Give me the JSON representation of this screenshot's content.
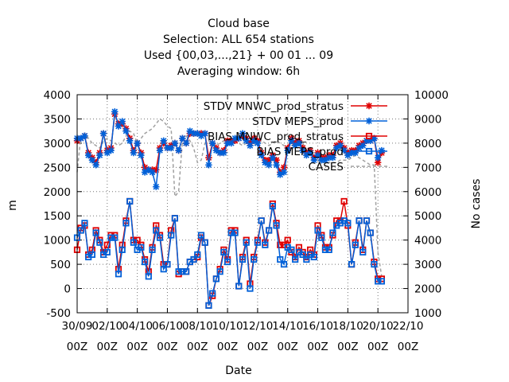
{
  "chart_data": {
    "type": "line",
    "title_lines": [
      "Cloud base",
      "Selection: ALL    654 stations",
      "Used {00,03,...,21} + 00 01 ... 09",
      "Averaging window:  6h"
    ],
    "xlabel": "Date",
    "ylabel": "m",
    "y2label": "No cases",
    "xlim": [
      0,
      22
    ],
    "ylim": [
      -500,
      4000
    ],
    "y2lim": [
      1000,
      10000
    ],
    "x_ticks": [
      {
        "line1": "30/09",
        "line2": "00Z"
      },
      {
        "line1": "02/10",
        "line2": "00Z"
      },
      {
        "line1": "04/10",
        "line2": "00Z"
      },
      {
        "line1": "06/10",
        "line2": "00Z"
      },
      {
        "line1": "08/10",
        "line2": "00Z"
      },
      {
        "line1": "10/10",
        "line2": "00Z"
      },
      {
        "line1": "12/10",
        "line2": "00Z"
      },
      {
        "line1": "14/10",
        "line2": "00Z"
      },
      {
        "line1": "16/10",
        "line2": "00Z"
      },
      {
        "line1": "18/10",
        "line2": "00Z"
      },
      {
        "line1": "20/10",
        "line2": "00Z"
      },
      {
        "line1": "22/10",
        "line2": "00Z"
      }
    ],
    "y_ticks": [
      "-500",
      "0",
      "500",
      "1000",
      "1500",
      "2000",
      "2500",
      "3000",
      "3500",
      "4000"
    ],
    "y2_ticks": [
      "1000",
      "2000",
      "3000",
      "4000",
      "5000",
      "6000",
      "7000",
      "8000",
      "9000",
      "10000"
    ],
    "grid": true,
    "legend_position": "top-right",
    "x": [
      0.0,
      0.25,
      0.5,
      0.75,
      1.0,
      1.25,
      1.5,
      1.75,
      2.0,
      2.25,
      2.5,
      2.75,
      3.0,
      3.25,
      3.5,
      3.75,
      4.0,
      4.25,
      4.5,
      4.75,
      5.0,
      5.25,
      5.5,
      5.75,
      6.0,
      6.25,
      6.5,
      6.75,
      7.0,
      7.25,
      7.5,
      7.75,
      8.0,
      8.25,
      8.5,
      8.75,
      9.0,
      9.25,
      9.5,
      9.75,
      10.0,
      10.25,
      10.5,
      10.75,
      11.0,
      11.25,
      11.5,
      11.75,
      12.0,
      12.25,
      12.5,
      12.75,
      13.0,
      13.25,
      13.5,
      13.75,
      14.0,
      14.25,
      14.5,
      14.75,
      15.0,
      15.25,
      15.5,
      15.75,
      16.0,
      16.25,
      16.5,
      16.75,
      17.0,
      17.25,
      17.5,
      17.75,
      18.0,
      18.25,
      18.5,
      18.75,
      19.0,
      19.25,
      19.5,
      19.75,
      20.0,
      20.25
    ],
    "series": [
      {
        "name": "STDV MNWC_prod_stratus",
        "axis": "y",
        "color": "#e00000",
        "marker": "x",
        "dash": "solid",
        "values": [
          3050,
          3100,
          3150,
          2800,
          2700,
          2600,
          2800,
          3200,
          2850,
          2900,
          3600,
          3400,
          3400,
          3300,
          3100,
          2850,
          3000,
          2800,
          2500,
          2450,
          2450,
          2450,
          2900,
          3000,
          2900,
          2950,
          3000,
          2850,
          3100,
          3000,
          3200,
          3200,
          3200,
          3200,
          3200,
          2700,
          3000,
          2900,
          2800,
          2850,
          3050,
          3050,
          3050,
          3100,
          3150,
          3100,
          3000,
          3100,
          3050,
          2800,
          2650,
          2650,
          2750,
          2650,
          2400,
          2500,
          2900,
          3100,
          3000,
          3050,
          2900,
          2800,
          2850,
          2700,
          2800,
          2700,
          2700,
          2750,
          2750,
          2950,
          3000,
          2900,
          2800,
          2850,
          2850,
          2950,
          3000,
          3050,
          3050,
          3100,
          2600,
          2800
        ]
      },
      {
        "name": "STDV MEPS_prod",
        "axis": "y",
        "color": "#0060d8",
        "marker": "x",
        "dash": "solid",
        "values": [
          3100,
          3100,
          3150,
          2750,
          2650,
          2550,
          2750,
          3200,
          2800,
          2850,
          3650,
          3350,
          3450,
          3250,
          3050,
          2800,
          3000,
          2750,
          2400,
          2450,
          2400,
          2100,
          2850,
          3050,
          2900,
          2900,
          3000,
          2850,
          3100,
          3000,
          3250,
          3200,
          3200,
          3150,
          3200,
          2550,
          3000,
          2850,
          2800,
          2800,
          3000,
          3000,
          3100,
          3100,
          3200,
          3050,
          2950,
          3050,
          3000,
          2750,
          2600,
          2550,
          2700,
          2550,
          2350,
          2400,
          2850,
          3050,
          2950,
          3000,
          2850,
          2750,
          2800,
          2650,
          2750,
          2650,
          2650,
          2700,
          2700,
          2900,
          2950,
          2850,
          2750,
          2800,
          2800,
          2900,
          2950,
          3050,
          3050,
          3100,
          2700,
          2850
        ]
      },
      {
        "name": "BIAS MNWC_prod_stratus",
        "axis": "y",
        "color": "#e00000",
        "marker": "square",
        "dash": "solid",
        "values": [
          800,
          1250,
          1300,
          700,
          800,
          1200,
          1000,
          750,
          900,
          1100,
          1100,
          400,
          900,
          1400,
          1800,
          1000,
          1000,
          900,
          600,
          350,
          850,
          1300,
          1100,
          500,
          500,
          1200,
          1450,
          300,
          350,
          350,
          550,
          600,
          650,
          1050,
          950,
          -350,
          -150,
          200,
          400,
          800,
          600,
          1200,
          1200,
          50,
          650,
          1000,
          100,
          650,
          1000,
          1400,
          950,
          1200,
          1750,
          1350,
          900,
          900,
          1000,
          750,
          650,
          850,
          750,
          650,
          800,
          700,
          1300,
          1100,
          850,
          850,
          1100,
          1400,
          1400,
          1800,
          1300,
          500,
          950,
          1400,
          800,
          1400,
          1150,
          550,
          200,
          200
        ]
      },
      {
        "name": "BIAS MEPS_prod",
        "axis": "y",
        "color": "#0060d8",
        "marker": "square",
        "dash": "solid",
        "values": [
          1050,
          1200,
          1350,
          650,
          700,
          1150,
          950,
          700,
          750,
          1050,
          1050,
          300,
          800,
          1350,
          1800,
          950,
          800,
          850,
          550,
          250,
          800,
          1200,
          1050,
          400,
          500,
          1100,
          1450,
          350,
          350,
          350,
          550,
          600,
          700,
          1100,
          950,
          -350,
          -100,
          200,
          350,
          750,
          550,
          1150,
          1150,
          50,
          600,
          950,
          0,
          600,
          950,
          1400,
          900,
          1200,
          1700,
          1300,
          600,
          500,
          850,
          800,
          600,
          750,
          700,
          600,
          700,
          650,
          1200,
          1050,
          800,
          800,
          1150,
          1300,
          1350,
          1400,
          1350,
          500,
          900,
          1400,
          750,
          1400,
          1150,
          500,
          150,
          150
        ]
      },
      {
        "name": "CASES",
        "axis": "y2",
        "color": "#a0a0a0",
        "marker": "none",
        "dash": "dashed",
        "values": [
          6800,
          8300,
          8400,
          8200,
          8000,
          7900,
          7800,
          8100,
          8200,
          8100,
          8000,
          7900,
          8000,
          8300,
          8500,
          8400,
          8000,
          8200,
          8400,
          8500,
          8600,
          8800,
          9000,
          8900,
          8700,
          8600,
          5800,
          6000,
          8100,
          8300,
          8100,
          7800,
          7200,
          7300,
          8000,
          8100,
          8000,
          7900,
          8000,
          8100,
          7900,
          8000,
          8100,
          8000,
          7900,
          8000,
          8000,
          7900,
          8000,
          8100,
          8000,
          7900,
          8000,
          8100,
          8000,
          7900,
          7800,
          7900,
          8000,
          8200,
          8000,
          7700,
          7500,
          7400,
          7300,
          7200,
          7200,
          7200,
          7200,
          7200,
          7300,
          7300,
          7300,
          7400,
          7500,
          7400,
          7300,
          7200,
          7100,
          7100,
          3500,
          2500
        ]
      }
    ]
  }
}
